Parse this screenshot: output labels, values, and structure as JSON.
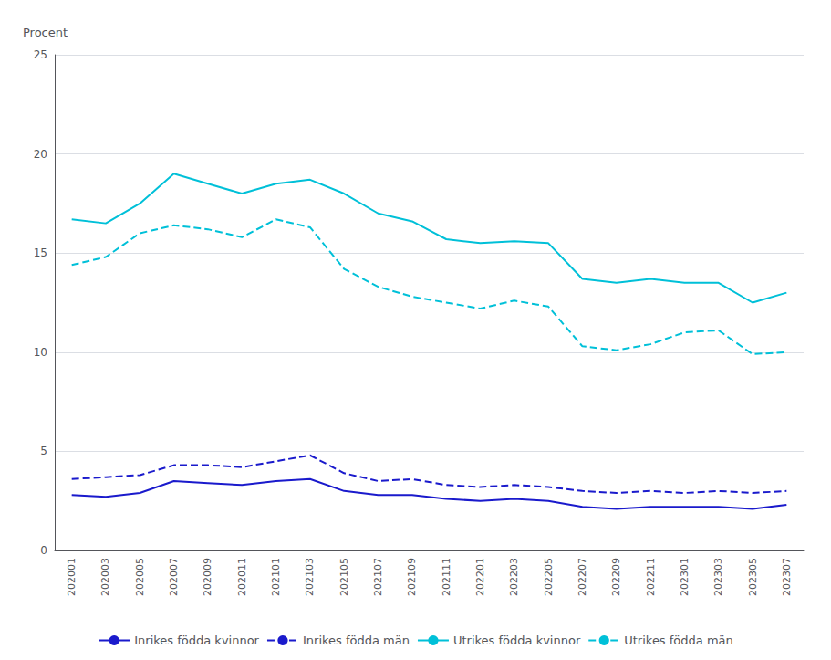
{
  "chart_data": {
    "type": "line",
    "ylabel": "Procent",
    "categories": [
      "202001",
      "202003",
      "202005",
      "202007",
      "202009",
      "202011",
      "202101",
      "202103",
      "202105",
      "202107",
      "202109",
      "202111",
      "202201",
      "202203",
      "202205",
      "202207",
      "202209",
      "202211",
      "202301",
      "202303",
      "202305",
      "202307"
    ],
    "series": [
      {
        "name": "Inrikes födda kvinnor",
        "color": "#1a1acc",
        "line_style": "solid",
        "values": [
          2.8,
          2.7,
          2.9,
          3.5,
          3.4,
          3.3,
          3.5,
          3.6,
          3.0,
          2.8,
          2.8,
          2.6,
          2.5,
          2.6,
          2.5,
          2.2,
          2.1,
          2.2,
          2.2,
          2.2,
          2.1,
          2.3
        ]
      },
      {
        "name": "Inrikes födda män",
        "color": "#1a1acc",
        "line_style": "dashed",
        "values": [
          3.6,
          3.7,
          3.8,
          4.3,
          4.3,
          4.2,
          4.5,
          4.8,
          3.9,
          3.5,
          3.6,
          3.3,
          3.2,
          3.3,
          3.2,
          3.0,
          2.9,
          3.0,
          2.9,
          3.0,
          2.9,
          3.0
        ]
      },
      {
        "name": "Utrikes födda kvinnor",
        "color": "#00c0d8",
        "line_style": "solid",
        "values": [
          16.7,
          16.5,
          17.5,
          19.0,
          18.5,
          18.0,
          18.5,
          18.7,
          18.0,
          17.0,
          16.6,
          15.7,
          15.5,
          15.6,
          15.5,
          13.7,
          13.5,
          13.7,
          13.5,
          13.5,
          12.5,
          13.0
        ]
      },
      {
        "name": "Utrikes födda män",
        "color": "#00c0d8",
        "line_style": "dashed",
        "values": [
          14.4,
          14.8,
          16.0,
          16.4,
          16.2,
          15.8,
          16.7,
          16.3,
          14.2,
          13.3,
          12.8,
          12.5,
          12.2,
          12.6,
          12.3,
          10.3,
          10.1,
          10.4,
          11.0,
          11.1,
          9.9,
          10.0
        ]
      }
    ],
    "ylim": [
      0,
      25
    ],
    "yticks": [
      0,
      5,
      10,
      15,
      20,
      25
    ],
    "grid": true,
    "legend": "bottom"
  }
}
